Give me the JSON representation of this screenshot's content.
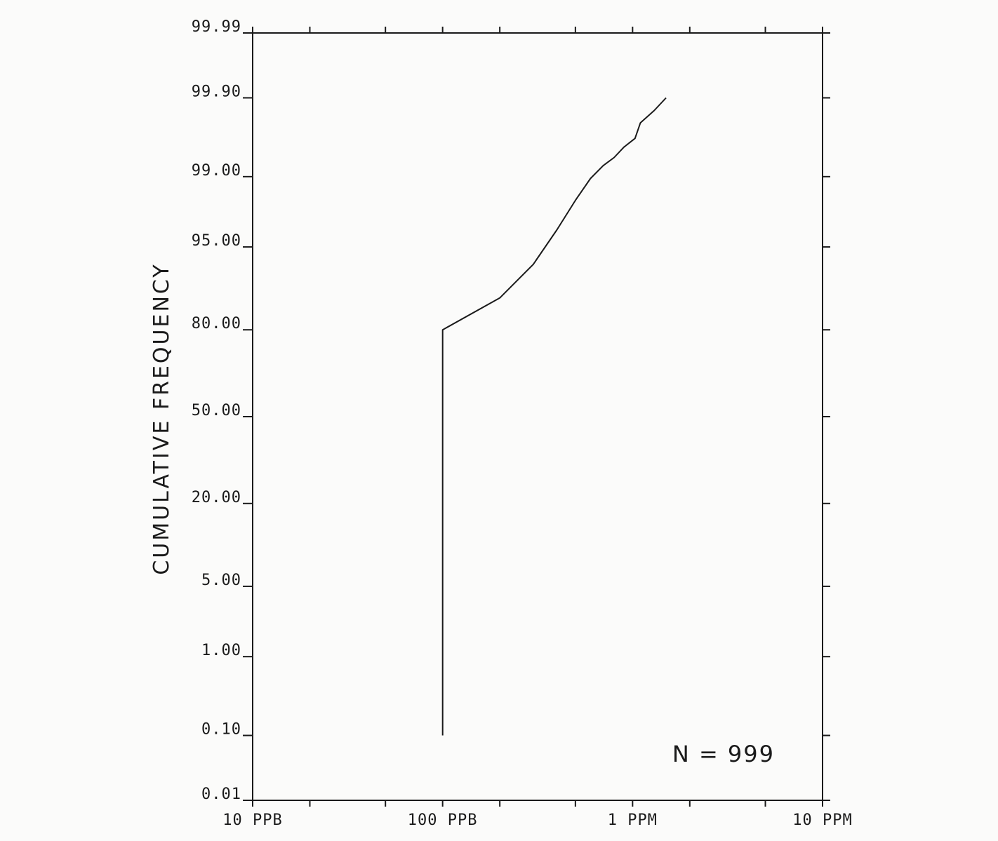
{
  "chart_data": {
    "type": "line",
    "title": "",
    "xlabel": "",
    "ylabel": "CUMULATIVE FREQUENCY",
    "x_scale": "log",
    "y_scale": "probability",
    "xlim": [
      0.01,
      10
    ],
    "ylim": [
      0.01,
      99.99
    ],
    "x_ticks": [
      {
        "value": 0.01,
        "label": "10 PPB"
      },
      {
        "value": 0.1,
        "label": "100 PPB"
      },
      {
        "value": 1,
        "label": "1 PPM"
      },
      {
        "value": 10,
        "label": "10 PPM"
      }
    ],
    "x_minor_ticks": [
      0.02,
      0.05,
      0.2,
      0.5,
      2,
      5
    ],
    "y_ticks": [
      {
        "value": 0.01,
        "label": "0.01"
      },
      {
        "value": 0.1,
        "label": "0.10"
      },
      {
        "value": 1,
        "label": "1.00"
      },
      {
        "value": 5,
        "label": "5.00"
      },
      {
        "value": 20,
        "label": "20.00"
      },
      {
        "value": 50,
        "label": "50.00"
      },
      {
        "value": 80,
        "label": "80.00"
      },
      {
        "value": 95,
        "label": "95.00"
      },
      {
        "value": 99,
        "label": "99.00"
      },
      {
        "value": 99.9,
        "label": "99.90"
      },
      {
        "value": 99.99,
        "label": "99.99"
      }
    ],
    "grid": false,
    "annotation": "N = 999",
    "series": [
      {
        "points": [
          [
            0.1,
            0.1
          ],
          [
            0.1,
            80.0
          ],
          [
            0.2,
            87.5
          ],
          [
            0.3,
            93.0
          ],
          [
            0.4,
            96.5
          ],
          [
            0.5,
            98.2
          ],
          [
            0.6,
            98.95
          ],
          [
            0.7,
            99.25
          ],
          [
            0.8,
            99.4
          ],
          [
            0.9,
            99.55
          ],
          [
            1.03,
            99.65
          ],
          [
            1.1,
            99.78
          ],
          [
            1.3,
            99.85
          ],
          [
            1.5,
            99.9
          ]
        ]
      }
    ]
  }
}
